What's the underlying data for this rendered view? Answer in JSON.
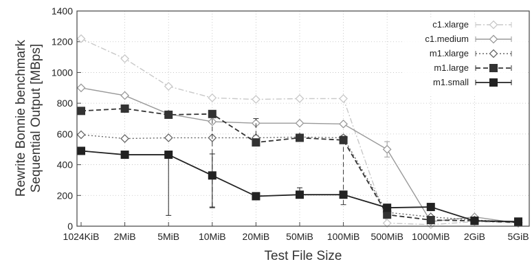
{
  "chart_data": {
    "type": "line",
    "title": "",
    "xlabel": "Test File Size",
    "ylabel": [
      "Rewrite Bonnie benchmark",
      "Sequential Output [MBps]"
    ],
    "categories": [
      "1024KiB",
      "2MiB",
      "5MiB",
      "10MiB",
      "20MiB",
      "50MiB",
      "100MiB",
      "500MiB",
      "1000MiB",
      "2GiB",
      "5GiB"
    ],
    "ylim": [
      0,
      1400
    ],
    "yticks": [
      "0",
      "200",
      "400",
      "600",
      "800",
      "1000",
      "1200",
      "1400"
    ],
    "grid": true,
    "legend_position": "top-right",
    "series": [
      {
        "name": "c1.xlarge",
        "color": "#c8c8c8",
        "dash": "8,3,2,3",
        "marker": "diamond-open",
        "values": [
          1220,
          1090,
          910,
          835,
          825,
          830,
          830,
          20,
          10,
          30,
          20
        ],
        "err": [
          [
            1220,
            1220
          ],
          [
            1090,
            1090
          ],
          [
            910,
            910
          ],
          [
            835,
            835
          ],
          [
            825,
            825
          ],
          [
            830,
            830
          ],
          [
            830,
            830
          ],
          [
            20,
            20
          ],
          [
            10,
            10
          ],
          [
            30,
            30
          ],
          [
            20,
            20
          ]
        ]
      },
      {
        "name": "c1.medium",
        "color": "#999999",
        "dash": "",
        "marker": "diamond-open",
        "values": [
          900,
          850,
          730,
          680,
          670,
          670,
          665,
          500,
          30,
          60,
          20
        ],
        "err": [
          [
            900,
            900
          ],
          [
            850,
            850
          ],
          [
            730,
            730
          ],
          [
            680,
            680
          ],
          [
            670,
            670
          ],
          [
            670,
            670
          ],
          [
            665,
            665
          ],
          [
            450,
            550
          ],
          [
            30,
            30
          ],
          [
            60,
            60
          ],
          [
            20,
            20
          ]
        ]
      },
      {
        "name": "m1.xlarge",
        "color": "#666666",
        "dash": "2,3",
        "marker": "diamond-open",
        "values": [
          595,
          570,
          575,
          575,
          575,
          580,
          575,
          90,
          60,
          40,
          25
        ],
        "err": [
          [
            595,
            595
          ],
          [
            570,
            570
          ],
          [
            575,
            575
          ],
          [
            575,
            575
          ],
          [
            560,
            590
          ],
          [
            570,
            590
          ],
          [
            560,
            590
          ],
          [
            80,
            100
          ],
          [
            60,
            60
          ],
          [
            40,
            40
          ],
          [
            25,
            25
          ]
        ]
      },
      {
        "name": "m1.large",
        "color": "#333333",
        "dash": "7,4",
        "marker": "square-filled",
        "values": [
          750,
          765,
          725,
          730,
          545,
          575,
          560,
          75,
          40,
          35,
          25
        ],
        "err": [
          [
            750,
            750
          ],
          [
            765,
            765
          ],
          [
            725,
            725
          ],
          [
            125,
            730
          ],
          [
            540,
            700
          ],
          [
            560,
            590
          ],
          [
            140,
            570
          ],
          [
            70,
            80
          ],
          [
            40,
            40
          ],
          [
            35,
            35
          ],
          [
            25,
            25
          ]
        ]
      },
      {
        "name": "m1.small",
        "color": "#222222",
        "dash": "",
        "marker": "square-filled",
        "values": [
          490,
          465,
          465,
          330,
          195,
          205,
          205,
          120,
          125,
          35,
          30
        ],
        "err": [
          [
            490,
            490
          ],
          [
            465,
            465
          ],
          [
            70,
            470
          ],
          [
            120,
            470
          ],
          [
            195,
            195
          ],
          [
            185,
            250
          ],
          [
            205,
            205
          ],
          [
            110,
            130
          ],
          [
            120,
            130
          ],
          [
            35,
            35
          ],
          [
            30,
            30
          ]
        ]
      }
    ]
  }
}
